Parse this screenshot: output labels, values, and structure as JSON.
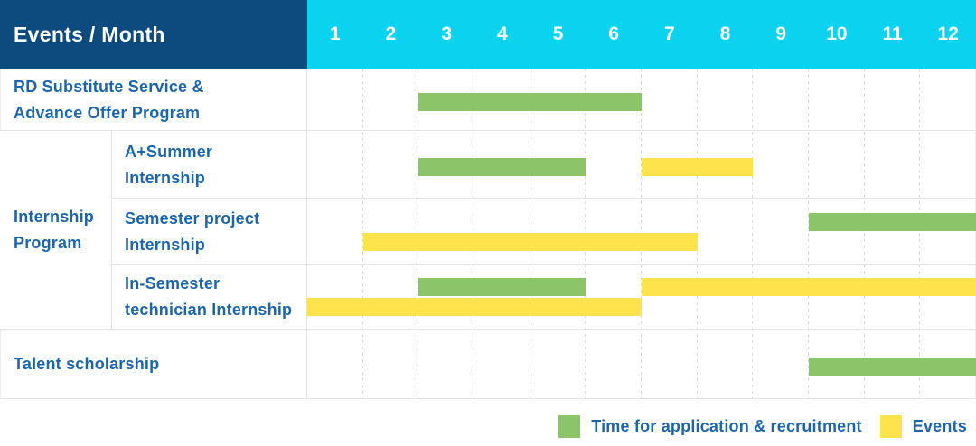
{
  "header": {
    "label": "Events / Month",
    "months": [
      "1",
      "2",
      "3",
      "4",
      "5",
      "6",
      "7",
      "8",
      "9",
      "10",
      "11",
      "12"
    ]
  },
  "colors": {
    "header_bg": "#0d4a7d",
    "months_bg": "#09d3ee",
    "header_text": "#ffffff",
    "label_text": "#1e65a8",
    "bar_green": "#8cc46a",
    "bar_yellow": "#ffe34c",
    "grid_solid": "#e4e4e4",
    "grid_dashed": "#d9d9d9",
    "grid_outer": "#ededed"
  },
  "legend": [
    {
      "swatch": "green",
      "label": "Time for application & recruitment"
    },
    {
      "swatch": "yellow",
      "label": "Events"
    }
  ],
  "chart_data": {
    "type": "bar",
    "subtype": "gantt-timeline",
    "title": "Events / Month",
    "xlabel": "Month",
    "x": {
      "ticks": [
        1,
        2,
        3,
        4,
        5,
        6,
        7,
        8,
        9,
        10,
        11,
        12
      ],
      "range": [
        1,
        12
      ]
    },
    "series_legend": [
      {
        "name": "Time for application & recruitment",
        "color": "#8cc46a"
      },
      {
        "name": "Events",
        "color": "#ffe34c"
      }
    ],
    "rows": [
      {
        "group": "",
        "label": "RD Substitute Service &\nAdvance Offer Program",
        "bars": [
          {
            "series": "Time for application & recruitment",
            "color": "green",
            "start_month": 3,
            "end_month": 6,
            "lane": "single"
          }
        ]
      },
      {
        "group": "Internship\nProgram",
        "label": "A+Summer\nInternship",
        "bars": [
          {
            "series": "Time for application & recruitment",
            "color": "green",
            "start_month": 3,
            "end_month": 5,
            "lane": "single"
          },
          {
            "series": "Events",
            "color": "yellow",
            "start_month": 7,
            "end_month": 8,
            "lane": "single"
          }
        ]
      },
      {
        "group": "Internship\nProgram",
        "label": "Semester project\nInternship",
        "bars": [
          {
            "series": "Time for application & recruitment",
            "color": "green",
            "start_month": 10,
            "end_month": 12,
            "lane": "top"
          },
          {
            "series": "Events",
            "color": "yellow",
            "start_month": 2,
            "end_month": 7,
            "lane": "bottom"
          }
        ]
      },
      {
        "group": "Internship\nProgram",
        "label": "In-Semester\ntechnician Internship",
        "bars": [
          {
            "series": "Time for application & recruitment",
            "color": "green",
            "start_month": 3,
            "end_month": 5,
            "lane": "top"
          },
          {
            "series": "Events",
            "color": "yellow",
            "start_month": 7,
            "end_month": 12,
            "lane": "top"
          },
          {
            "series": "Events",
            "color": "yellow",
            "start_month": 1,
            "end_month": 6,
            "lane": "bottom"
          }
        ]
      },
      {
        "group": "",
        "label": "Talent scholarship",
        "bars": [
          {
            "series": "Time for application & recruitment",
            "color": "green",
            "start_month": 10,
            "end_month": 12,
            "lane": "single"
          }
        ]
      }
    ]
  }
}
